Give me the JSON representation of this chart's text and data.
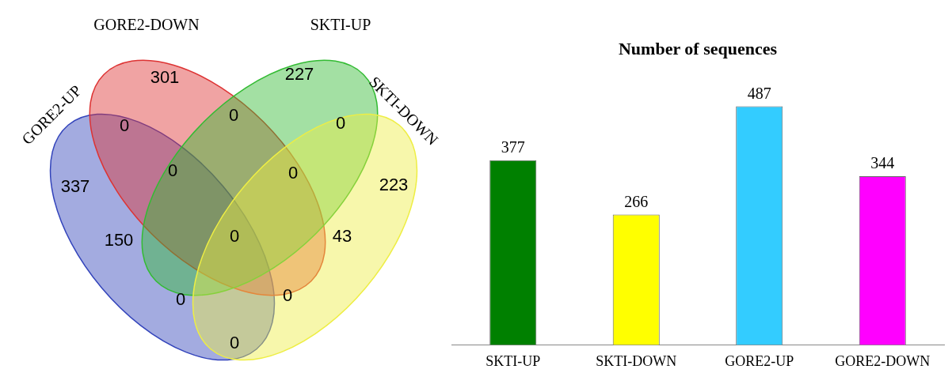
{
  "chart_data": [
    {
      "type": "other",
      "annotations": [
        "GORE2-UP",
        "GORE2-DOWN",
        "SKTI-UP",
        "SKTI-DOWN",
        "337",
        "301",
        "227",
        "223",
        "0",
        "0",
        "0",
        "0",
        "0",
        "150",
        "0",
        "43",
        "0",
        "0",
        "0"
      ]
    },
    {
      "type": "bar",
      "title": "Number of sequences",
      "categories": [
        "SKTI-UP",
        "SKTI-DOWN",
        "GORE2-UP",
        "GORE2-DOWN"
      ],
      "values": [
        377,
        266,
        487,
        344
      ],
      "colors": [
        "#008000",
        "#ffff00",
        "#33ccff",
        "#ff00ff"
      ],
      "data_labels": true
    }
  ]
}
